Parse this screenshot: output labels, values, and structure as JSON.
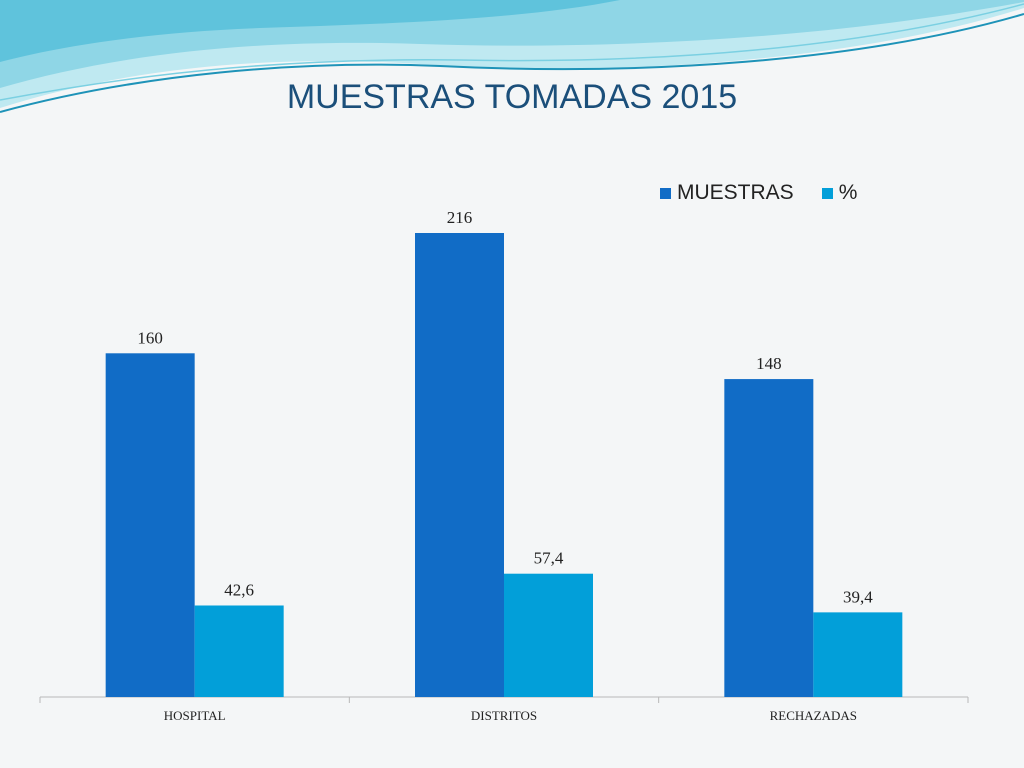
{
  "chart_data": {
    "type": "bar",
    "title": "MUESTRAS TOMADAS 2015",
    "categories": [
      "HOSPITAL",
      "DISTRITOS",
      "RECHAZADAS"
    ],
    "series": [
      {
        "name": "MUESTRAS",
        "values": [
          160,
          216,
          148
        ],
        "labels": [
          "160",
          "216",
          "148"
        ],
        "color": "#116cc6"
      },
      {
        "name": "%",
        "values": [
          42.6,
          57.4,
          39.4
        ],
        "labels": [
          "42,6",
          "57,4",
          "39,4"
        ],
        "color": "#029fd9"
      }
    ],
    "ylim": [
      0,
      216
    ],
    "grid": false,
    "legend": "top-right"
  },
  "colors": {
    "accent": "#1b4f7a",
    "wave_light": "#7fd3e4",
    "wave_dark": "#2aa6c9"
  }
}
